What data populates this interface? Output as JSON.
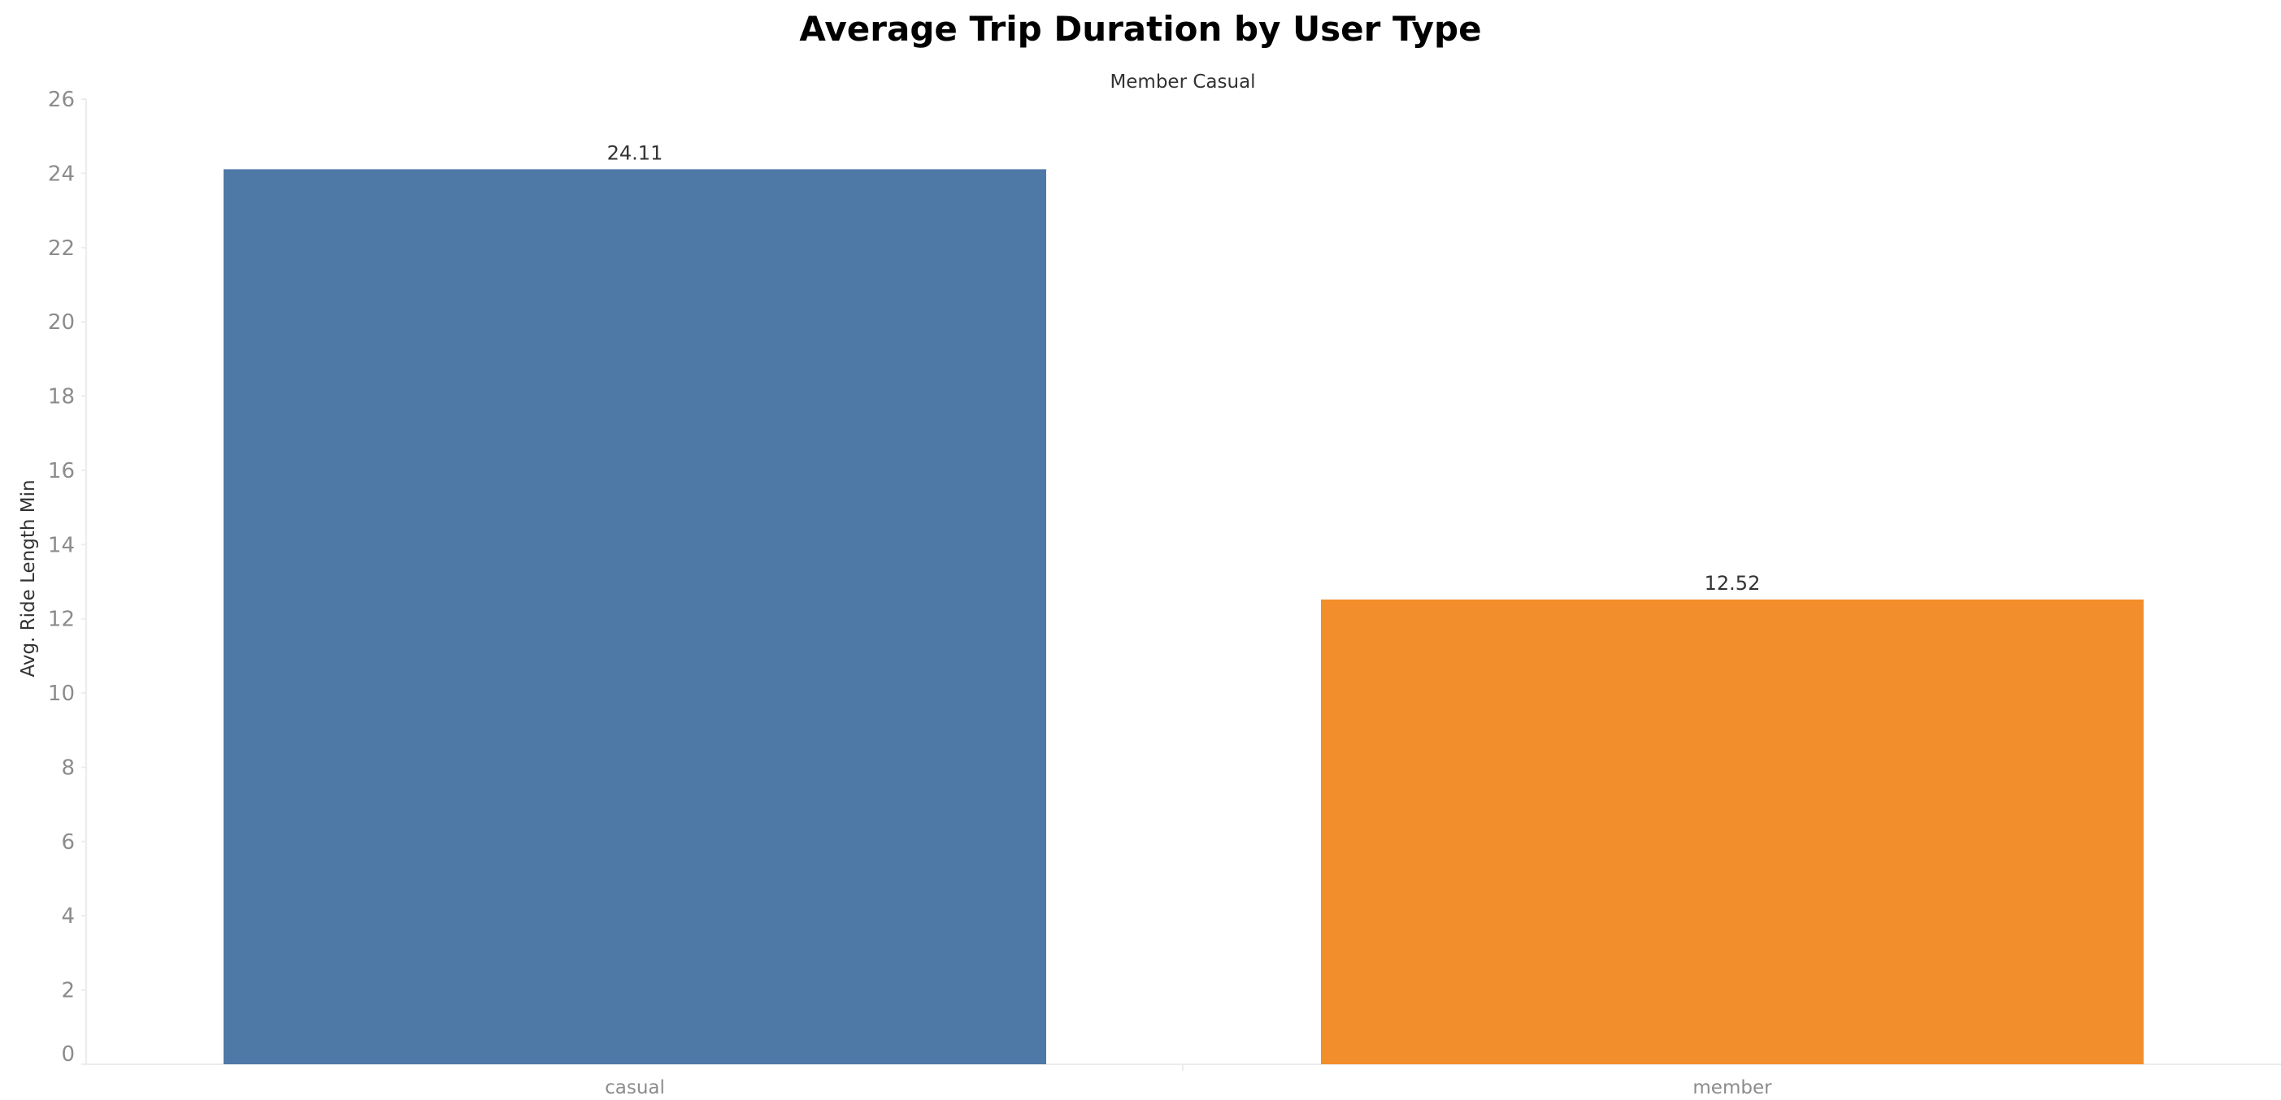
{
  "chart_data": {
    "type": "bar",
    "title": "Average Trip Duration by User Type",
    "column_header": "Member Casual",
    "ylabel": "Avg. Ride Length Min",
    "xlabel": "",
    "categories": [
      "casual",
      "member"
    ],
    "values": [
      24.11,
      12.52
    ],
    "value_labels": [
      "24.11",
      "12.52"
    ],
    "colors": [
      "#4e79a7",
      "#f28e2b"
    ],
    "ylim": [
      0,
      26
    ],
    "yticks": [
      0,
      2,
      4,
      6,
      8,
      10,
      12,
      14,
      16,
      18,
      20,
      22,
      24,
      26
    ],
    "grid": false,
    "legend": "none"
  }
}
